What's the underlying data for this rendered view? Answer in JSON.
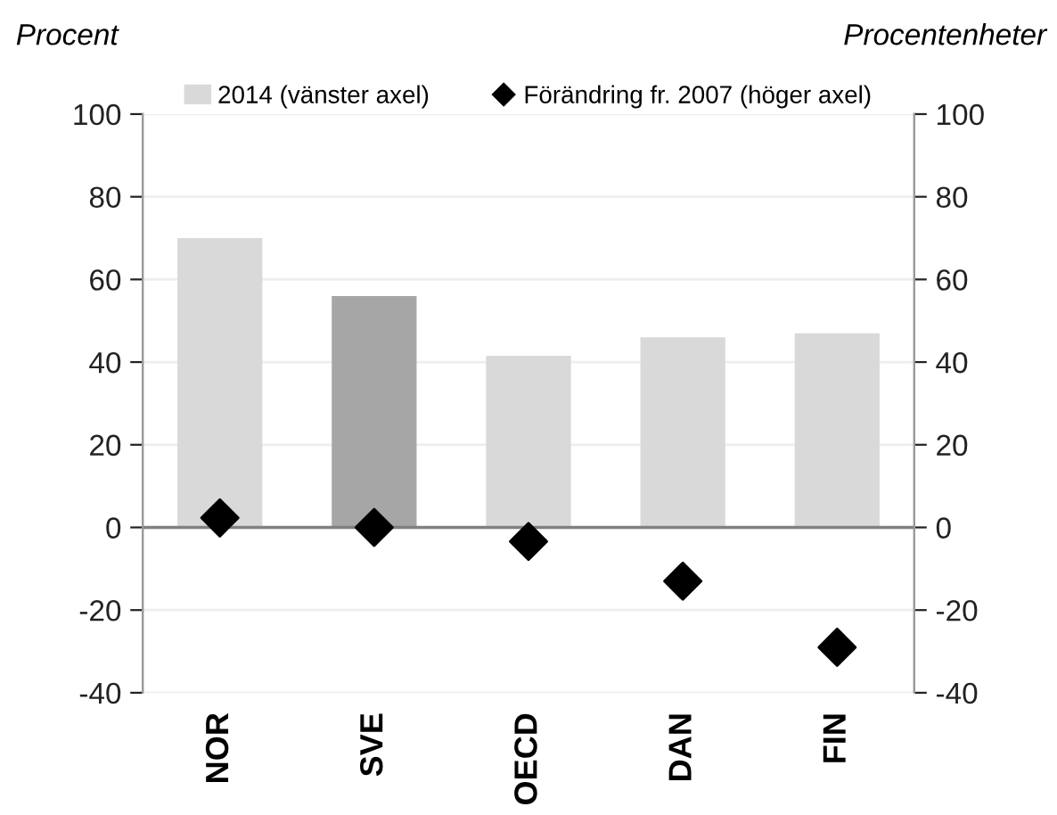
{
  "chart_data": {
    "type": "bar",
    "ylabel": "Procent",
    "y2label": "Procentenheter",
    "categories": [
      "NOR",
      "SVE",
      "OECD",
      "DAN",
      "FIN"
    ],
    "series": [
      {
        "name": "2014 (vänster axel)",
        "color": "#d9d9d9",
        "colors": [
          "#d9d9d9",
          "#a6a6a6",
          "#d9d9d9",
          "#d9d9d9",
          "#d9d9d9"
        ],
        "values": [
          70,
          56,
          41.5,
          46,
          47
        ]
      },
      {
        "name": "Förändring fr. 2007 (höger axel)",
        "type": "scatter",
        "axis": "y2",
        "color": "#000000",
        "marker": "diamond",
        "values": [
          2.3,
          0,
          -3.4,
          -13,
          -29
        ]
      }
    ],
    "ylim": [
      -40,
      100
    ],
    "yticks": [
      -40,
      -20,
      0,
      20,
      40,
      60,
      80,
      100
    ],
    "y2lim": [
      -40,
      100
    ],
    "y2ticks": [
      -40,
      -20,
      0,
      20,
      40,
      60,
      80,
      100
    ],
    "grid": "y",
    "legend": "top"
  }
}
